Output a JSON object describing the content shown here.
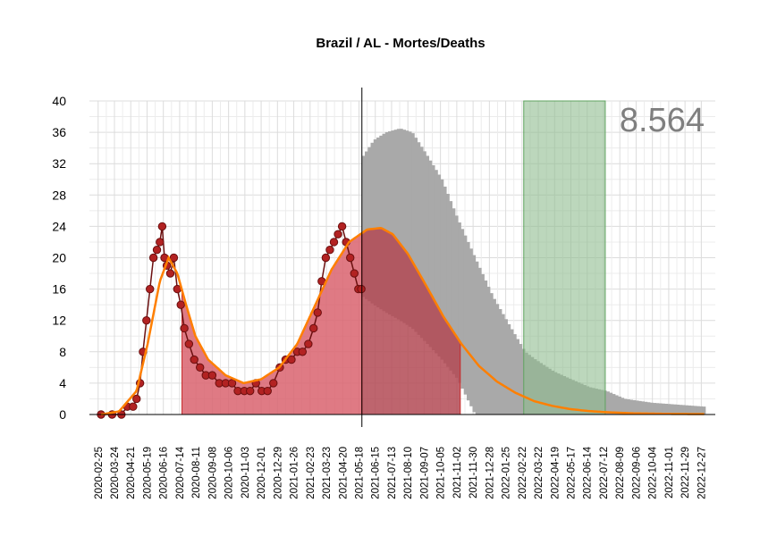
{
  "chart_data": {
    "type": "line",
    "title": "Brazil / AL - Mortes/Deaths",
    "xlabel": "",
    "ylabel": "",
    "ylim": [
      0,
      40
    ],
    "xlim": [
      "2020-02-10",
      "2023-01-20"
    ],
    "yticks": [
      0,
      4,
      8,
      12,
      16,
      20,
      24,
      28,
      32,
      36,
      40
    ],
    "xticks": [
      "2020-02-25",
      "2020-03-24",
      "2020-04-21",
      "2020-05-19",
      "2020-06-16",
      "2020-07-14",
      "2020-08-11",
      "2020-09-08",
      "2020-10-06",
      "2020-11-03",
      "2020-12-01",
      "2020-12-29",
      "2021-01-26",
      "2021-02-23",
      "2021-03-23",
      "2021-04-20",
      "2021-05-18",
      "2021-06-15",
      "2021-07-13",
      "2021-08-10",
      "2021-09-07",
      "2021-10-05",
      "2021-11-02",
      "2021-11-30",
      "2021-12-28",
      "2022-01-25",
      "2022-02-22",
      "2022-03-22",
      "2022-04-19",
      "2022-05-17",
      "2022-06-14",
      "2022-07-12",
      "2022-08-09",
      "2022-09-06",
      "2022-10-04",
      "2022-11-01",
      "2022-11-29",
      "2022-12-27"
    ],
    "grid": true,
    "annotation_total": "8.564",
    "current_date": "2021-05-23",
    "highlight_period": [
      "2022-02-25",
      "2022-07-15"
    ],
    "colors": {
      "observed": "#b22222",
      "observed_dark": "#6b0f0f",
      "fitted": "#ff7f00",
      "fill_past": "#d9636e",
      "fill_future": "#b34a55",
      "band": "#a9a9a9",
      "highlight": "#8fbc8f"
    },
    "series": [
      {
        "name": "observed",
        "x": [
          "2020-03-01",
          "2020-03-20",
          "2020-04-05",
          "2020-04-15",
          "2020-04-25",
          "2020-05-01",
          "2020-05-07",
          "2020-05-12",
          "2020-05-18",
          "2020-05-24",
          "2020-05-30",
          "2020-06-05",
          "2020-06-10",
          "2020-06-14",
          "2020-06-18",
          "2020-06-22",
          "2020-06-28",
          "2020-07-04",
          "2020-07-10",
          "2020-07-16",
          "2020-07-22",
          "2020-07-30",
          "2020-08-08",
          "2020-08-18",
          "2020-08-28",
          "2020-09-08",
          "2020-09-20",
          "2020-10-01",
          "2020-10-12",
          "2020-10-22",
          "2020-11-02",
          "2020-11-12",
          "2020-11-22",
          "2020-12-02",
          "2020-12-12",
          "2020-12-22",
          "2021-01-02",
          "2021-01-12",
          "2021-01-22",
          "2021-02-01",
          "2021-02-10",
          "2021-02-20",
          "2021-03-01",
          "2021-03-08",
          "2021-03-15",
          "2021-03-22",
          "2021-03-29",
          "2021-04-05",
          "2021-04-12",
          "2021-04-19",
          "2021-04-26",
          "2021-05-03",
          "2021-05-10",
          "2021-05-17",
          "2021-05-22"
        ],
        "values": [
          0,
          0,
          0,
          1,
          1,
          2,
          4,
          8,
          12,
          16,
          20,
          21,
          22,
          24,
          20,
          19,
          18,
          20,
          16,
          14,
          11,
          9,
          7,
          6,
          5,
          5,
          4,
          4,
          4,
          3,
          3,
          3,
          4,
          3,
          3,
          4,
          6,
          7,
          7,
          8,
          8,
          9,
          11,
          13,
          17,
          20,
          21,
          22,
          23,
          24,
          22,
          20,
          18,
          16,
          16
        ]
      },
      {
        "name": "fitted",
        "x": [
          "2020-03-01",
          "2020-04-01",
          "2020-05-01",
          "2020-05-20",
          "2020-06-10",
          "2020-06-25",
          "2020-07-10",
          "2020-07-25",
          "2020-08-10",
          "2020-09-01",
          "2020-10-01",
          "2020-11-01",
          "2020-12-01",
          "2021-01-01",
          "2021-02-01",
          "2021-03-01",
          "2021-04-01",
          "2021-05-01",
          "2021-06-01",
          "2021-06-25",
          "2021-07-15",
          "2021-08-10",
          "2021-09-10",
          "2021-10-10",
          "2021-11-10",
          "2021-12-10",
          "2022-01-10",
          "2022-02-10",
          "2022-03-15",
          "2022-04-15",
          "2022-05-15",
          "2022-06-15",
          "2022-07-15",
          "2022-09-01",
          "2022-11-01",
          "2023-01-01"
        ],
        "values": [
          0,
          0.4,
          3,
          9,
          17,
          20,
          18,
          14,
          10,
          7,
          5,
          4,
          4.5,
          6,
          9,
          13.5,
          18.5,
          22,
          23.6,
          23.8,
          23,
          20.5,
          16.5,
          12.5,
          9,
          6.2,
          4.2,
          2.8,
          1.7,
          1.1,
          0.7,
          0.45,
          0.3,
          0.15,
          0.08,
          0.05
        ]
      },
      {
        "name": "band_upper",
        "x": [
          "2021-05-23",
          "2021-06-10",
          "2021-07-01",
          "2021-07-25",
          "2021-08-15",
          "2021-09-10",
          "2021-10-05",
          "2021-11-01",
          "2021-12-01",
          "2022-01-01",
          "2022-02-01",
          "2022-02-25",
          "2022-03-15",
          "2022-04-15",
          "2022-05-15",
          "2022-06-15",
          "2022-07-15",
          "2022-08-15",
          "2022-10-01",
          "2022-12-31"
        ],
        "values": [
          33,
          35,
          36,
          36.5,
          36,
          33,
          30,
          25,
          20,
          15,
          11,
          8,
          7,
          5.5,
          4.5,
          3.5,
          3,
          2,
          1.5,
          1
        ]
      },
      {
        "name": "band_lower",
        "x": [
          "2021-05-23",
          "2021-06-10",
          "2021-07-01",
          "2021-07-25",
          "2021-08-15",
          "2021-09-10",
          "2021-10-05",
          "2021-11-01",
          "2021-12-01",
          "2022-01-01",
          "2022-02-01",
          "2022-02-25",
          "2022-04-01",
          "2022-07-15",
          "2022-12-31"
        ],
        "values": [
          15,
          14,
          13,
          12,
          11,
          9,
          7,
          4.5,
          0,
          0,
          0,
          0,
          0,
          0,
          0
        ]
      }
    ]
  }
}
